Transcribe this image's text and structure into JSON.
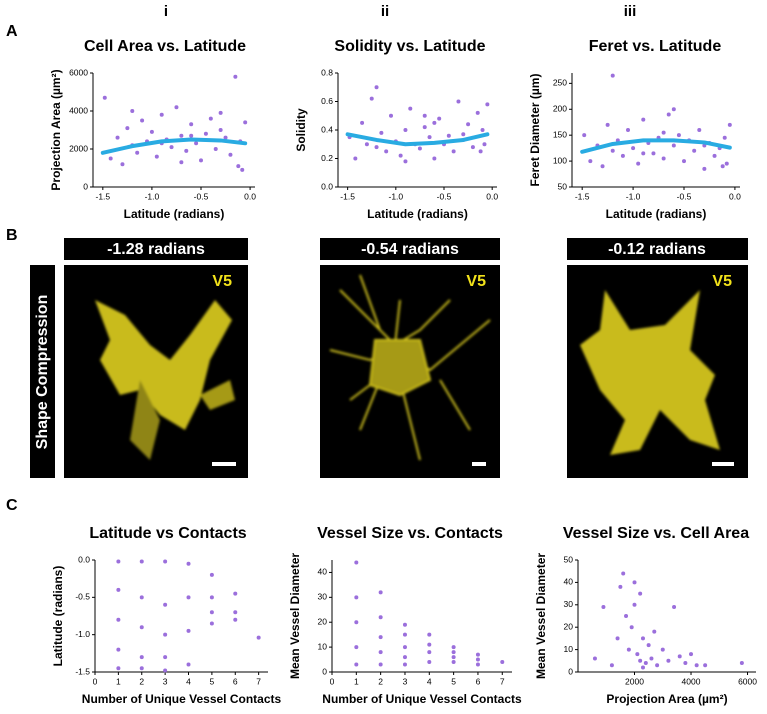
{
  "panel_labels": [
    "A",
    "B",
    "C"
  ],
  "column_labels": [
    "i",
    "ii",
    "iii"
  ],
  "images": {
    "row_label": "Shape Compression",
    "items": [
      {
        "title": "-1.28 radians",
        "tag": "V5"
      },
      {
        "title": "-0.54 radians",
        "tag": "V5"
      },
      {
        "title": "-0.12 radians",
        "tag": "V5"
      }
    ]
  },
  "chart_data": [
    {
      "type": "scatter",
      "title": "Cell Area vs. Latitude",
      "xlabel": "Latitude (radians)",
      "ylabel": "Projection Area (µm²)",
      "color": "#9b6fdc",
      "xlim": [
        -1.6,
        0.05
      ],
      "xticks": [
        -1.5,
        {
          "value": -1,
          "label": "-1.0"
        },
        -0.5,
        {
          "value": 0,
          "label": "0.0"
        }
      ],
      "ylim": [
        0,
        6000
      ],
      "yticks": [
        0,
        2000,
        4000,
        6000
      ],
      "x": [
        -1.48,
        -1.42,
        -1.35,
        -1.3,
        -1.25,
        -1.2,
        -1.15,
        -1.1,
        -1.05,
        -1.0,
        -0.95,
        -0.9,
        -0.85,
        -0.8,
        -0.75,
        -0.7,
        -0.65,
        -0.6,
        -0.55,
        -0.5,
        -0.45,
        -0.4,
        -0.35,
        -0.3,
        -0.25,
        -0.2,
        -0.15,
        -0.1,
        -0.08,
        -0.05,
        -1.2,
        -0.9,
        -0.6,
        -0.3,
        -0.12,
        -0.7
      ],
      "y": [
        4700,
        1500,
        2600,
        1200,
        3100,
        2200,
        1800,
        3500,
        2400,
        2900,
        1600,
        3800,
        2500,
        2100,
        4200,
        2700,
        1900,
        3300,
        2300,
        1400,
        2800,
        3600,
        2000,
        3000,
        2600,
        1700,
        5800,
        2400,
        900,
        3400,
        4000,
        2300,
        2700,
        3900,
        1100,
        1300
      ],
      "fit": {
        "color": "#29abe2",
        "x": [
          -1.5,
          -1.2,
          -0.9,
          -0.6,
          -0.3,
          -0.05
        ],
        "y": [
          1800,
          2150,
          2400,
          2500,
          2450,
          2300
        ]
      }
    },
    {
      "type": "scatter",
      "title": "Solidity vs. Latitude",
      "xlabel": "Latitude (radians)",
      "ylabel": "Solidity",
      "color": "#9b6fdc",
      "xlim": [
        -1.6,
        0.05
      ],
      "xticks": [
        -1.5,
        {
          "value": -1,
          "label": "-1.0"
        },
        -0.5,
        {
          "value": 0,
          "label": "0.0"
        }
      ],
      "ylim": [
        0,
        0.8
      ],
      "yticks": [
        {
          "value": 0,
          "label": "0.0"
        },
        0.2,
        0.4,
        0.6,
        0.8
      ],
      "x": [
        -1.48,
        -1.42,
        -1.35,
        -1.3,
        -1.25,
        -1.2,
        -1.15,
        -1.1,
        -1.05,
        -1.0,
        -0.95,
        -0.9,
        -0.85,
        -0.8,
        -0.75,
        -0.7,
        -0.65,
        -0.6,
        -0.55,
        -0.5,
        -0.45,
        -0.4,
        -0.35,
        -0.3,
        -0.25,
        -0.2,
        -0.15,
        -0.1,
        -0.08,
        -0.05,
        -1.2,
        -0.9,
        -0.6,
        -0.3,
        -0.12,
        -0.7
      ],
      "y": [
        0.35,
        0.2,
        0.45,
        0.3,
        0.62,
        0.28,
        0.38,
        0.25,
        0.5,
        0.32,
        0.22,
        0.4,
        0.55,
        0.3,
        0.27,
        0.42,
        0.35,
        0.2,
        0.48,
        0.3,
        0.36,
        0.25,
        0.6,
        0.33,
        0.44,
        0.28,
        0.52,
        0.4,
        0.3,
        0.58,
        0.7,
        0.18,
        0.45,
        0.37,
        0.25,
        0.5
      ],
      "fit": {
        "color": "#29abe2",
        "x": [
          -1.5,
          -1.2,
          -0.9,
          -0.6,
          -0.3,
          -0.05
        ],
        "y": [
          0.37,
          0.33,
          0.3,
          0.31,
          0.33,
          0.37
        ]
      }
    },
    {
      "type": "scatter",
      "title": "Feret vs. Latitude",
      "xlabel": "Latitude (radians)",
      "ylabel": "Feret Diameter (µm)",
      "color": "#9b6fdc",
      "xlim": [
        -1.6,
        0.05
      ],
      "xticks": [
        -1.5,
        {
          "value": -1,
          "label": "-1.0"
        },
        -0.5,
        {
          "value": 0,
          "label": "0.0"
        }
      ],
      "ylim": [
        50,
        270
      ],
      "yticks": [
        50,
        100,
        150,
        200,
        250
      ],
      "x": [
        -1.48,
        -1.42,
        -1.35,
        -1.3,
        -1.25,
        -1.2,
        -1.15,
        -1.1,
        -1.05,
        -1.0,
        -0.95,
        -0.9,
        -0.85,
        -0.8,
        -0.75,
        -0.7,
        -0.65,
        -0.6,
        -0.55,
        -0.5,
        -0.45,
        -0.4,
        -0.35,
        -0.3,
        -0.25,
        -0.2,
        -0.15,
        -0.1,
        -0.08,
        -0.05,
        -1.2,
        -0.9,
        -0.6,
        -0.3,
        -0.12,
        -0.7
      ],
      "y": [
        150,
        100,
        130,
        90,
        170,
        120,
        140,
        110,
        160,
        125,
        95,
        180,
        135,
        115,
        145,
        105,
        190,
        130,
        150,
        100,
        140,
        120,
        160,
        85,
        135,
        110,
        125,
        145,
        95,
        170,
        265,
        115,
        200,
        130,
        90,
        155
      ],
      "fit": {
        "color": "#29abe2",
        "x": [
          -1.5,
          -1.2,
          -0.9,
          -0.6,
          -0.3,
          -0.05
        ],
        "y": [
          118,
          133,
          140,
          140,
          136,
          126
        ]
      }
    },
    {
      "type": "scatter",
      "title": "Latitude vs Contacts",
      "xlabel": "Number of Unique Vessel Contacts",
      "ylabel": "Latitude (radians)",
      "color": "#9b6fdc",
      "xlim": [
        0,
        7.4
      ],
      "xticks": [
        0,
        1,
        2,
        3,
        4,
        5,
        6,
        7
      ],
      "ylim": [
        -1.5,
        0
      ],
      "yticks": [
        -1.5,
        {
          "value": -1,
          "label": "-1.0"
        },
        -0.5,
        {
          "value": 0,
          "label": "0.0"
        }
      ],
      "x": [
        1,
        1,
        1,
        1,
        1,
        2,
        2,
        2,
        2,
        2,
        3,
        3,
        3,
        3,
        3,
        4,
        4,
        4,
        4,
        5,
        5,
        5,
        5,
        6,
        6,
        6,
        7
      ],
      "y": [
        -0.02,
        -0.4,
        -0.8,
        -1.2,
        -1.45,
        -0.02,
        -0.5,
        -0.9,
        -1.3,
        -1.45,
        -0.02,
        -0.6,
        -1.0,
        -1.3,
        -1.48,
        -0.05,
        -0.5,
        -0.95,
        -1.4,
        -0.2,
        -0.5,
        -0.7,
        -0.85,
        -0.45,
        -0.7,
        -0.8,
        -1.04
      ]
    },
    {
      "type": "scatter",
      "title": "Vessel Size vs. Contacts",
      "xlabel": "Number of Unique Vessel Contacts",
      "ylabel": "Mean Vessel Diameter",
      "color": "#9b6fdc",
      "xlim": [
        0,
        7.4
      ],
      "xticks": [
        0,
        1,
        2,
        3,
        4,
        5,
        6,
        7
      ],
      "ylim": [
        0,
        45
      ],
      "yticks": [
        0,
        10,
        20,
        30,
        40
      ],
      "x": [
        1,
        1,
        1,
        1,
        1,
        2,
        2,
        2,
        2,
        2,
        3,
        3,
        3,
        3,
        3,
        4,
        4,
        4,
        4,
        5,
        5,
        5,
        5,
        6,
        6,
        6,
        7
      ],
      "y": [
        44,
        30,
        20,
        10,
        3,
        32,
        22,
        14,
        8,
        3,
        19,
        15,
        10,
        6,
        3,
        15,
        11,
        8,
        4,
        10,
        8,
        6,
        4,
        7,
        5,
        3,
        4
      ]
    },
    {
      "type": "scatter",
      "title": "Vessel Size vs. Cell Area",
      "xlabel": "Projection Area (µm²)",
      "ylabel": "Mean Vessel Diameter",
      "color": "#9b6fdc",
      "xlim": [
        0,
        6300
      ],
      "xticks": [
        2000,
        4000,
        6000
      ],
      "ylim": [
        0,
        50
      ],
      "yticks": [
        0,
        10,
        20,
        30,
        40,
        50
      ],
      "x": [
        600,
        900,
        1200,
        1500,
        1600,
        1800,
        1900,
        2000,
        2100,
        2200,
        2300,
        2400,
        2500,
        2600,
        2800,
        3000,
        3200,
        3400,
        3600,
        3800,
        4000,
        4200,
        4500,
        5800,
        1700,
        2000,
        2300,
        2700,
        1400,
        2200
      ],
      "y": [
        6,
        29,
        3,
        38,
        44,
        10,
        20,
        30,
        8,
        5,
        15,
        4,
        12,
        6,
        3,
        10,
        5,
        29,
        7,
        4,
        8,
        3,
        3,
        4,
        25,
        40,
        2,
        18,
        15,
        35
      ]
    }
  ]
}
